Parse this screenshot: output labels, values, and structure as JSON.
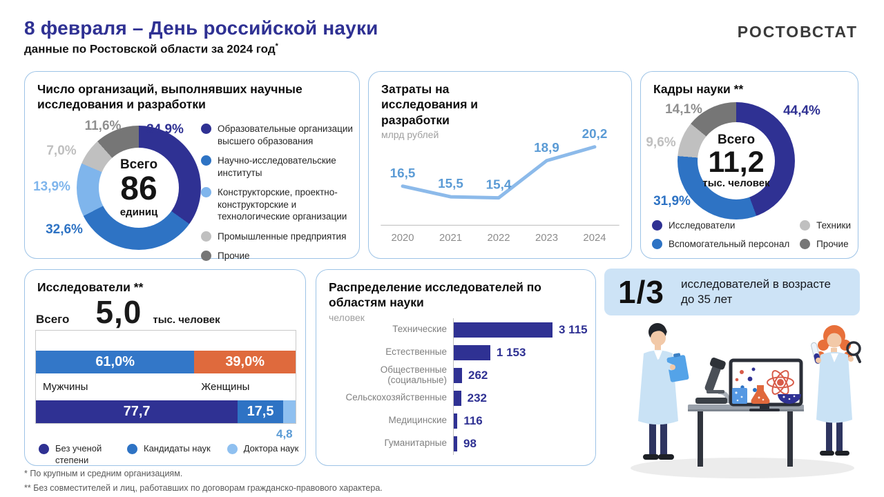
{
  "header": {
    "title": "8 февраля – День российской науки",
    "subtitle": "данные по Ростовской области за 2024 год",
    "subtitle_mark": "*",
    "logo": "РОСТОВСТАТ"
  },
  "colors": {
    "navy": "#2F3193",
    "blue": "#2E73C4",
    "light_blue": "#7FB5EC",
    "light_gray": "#C0C0C0",
    "dark_gray": "#767676",
    "orange": "#E0683C",
    "card_border": "#9DC3E6",
    "badge_bg": "#CDE3F6"
  },
  "chart_data": [
    {
      "id": "organizations",
      "type": "pie",
      "donut": true,
      "title": "Число организаций, выполнявших научные исследования и разработки",
      "center": {
        "top": "Всего",
        "value": "86",
        "unit": "единиц"
      },
      "legend_position": "right",
      "segments": [
        {
          "label": "Образовательные организации высшего образования",
          "value": 34.9,
          "display": "34,9%",
          "color": "#2F3193",
          "label_color": "#2F3193"
        },
        {
          "label": "Научно-исследовательские институты",
          "value": 32.6,
          "display": "32,6%",
          "color": "#2E73C4",
          "label_color": "#2E73C4"
        },
        {
          "label": "Конструкторские, проектно-конструкторские и технологические  организации",
          "value": 13.9,
          "display": "13,9%",
          "color": "#7FB5EC",
          "label_color": "#7FB5EC"
        },
        {
          "label": "Промышленные  предприятия",
          "value": 7.0,
          "display": "7,0%",
          "color": "#C0C0C0",
          "label_color": "#BFBFBF"
        },
        {
          "label": "Прочие",
          "value": 11.6,
          "display": "11,6%",
          "color": "#767676",
          "label_color": "#8F8F8F"
        }
      ]
    },
    {
      "id": "expenditure",
      "type": "line",
      "title": "Затраты на исследования и разработки",
      "unit_label": "млрд рублей",
      "x": [
        "2020",
        "2021",
        "2022",
        "2023",
        "2024"
      ],
      "values": [
        16.5,
        15.5,
        15.4,
        18.9,
        20.2
      ],
      "value_labels": [
        "16,5",
        "15,5",
        "15,4",
        "18,9",
        "20,2"
      ],
      "ylim": [
        15.4,
        20.2
      ],
      "grid": false,
      "line_color": "#8CBAEA",
      "value_label_color": "#5B9BD5",
      "tick_color": "#8C8C8C"
    },
    {
      "id": "personnel",
      "type": "pie",
      "donut": true,
      "title": "Кадры науки **",
      "center": {
        "top": "Всего",
        "value": "11,2",
        "unit": "тыс. человек"
      },
      "legend_position": "bottom",
      "segments": [
        {
          "label": "Исследователи",
          "value": 44.4,
          "display": "44,4%",
          "color": "#2F3193",
          "label_color": "#2F3193"
        },
        {
          "label": "Вспомогательный  персонал",
          "value": 31.9,
          "display": "31,9%",
          "color": "#2E73C4",
          "label_color": "#2E73C4"
        },
        {
          "label": "Техники",
          "value": 9.6,
          "display": "9,6%",
          "color": "#C0C0C0",
          "label_color": "#BFBFBF"
        },
        {
          "label": "Прочие",
          "value": 14.1,
          "display": "14,1%",
          "color": "#767676",
          "label_color": "#8F8F8F"
        }
      ]
    },
    {
      "id": "researchers",
      "type": "bar",
      "title": "Исследователи **",
      "total": {
        "label": "Всего",
        "value": "5,0",
        "unit": "тыс. человек"
      },
      "gender_bar": [
        {
          "label": "Мужчины",
          "value": 61.0,
          "display": "61,0%",
          "color": "#3377C8"
        },
        {
          "label": "Женщины",
          "value": 39.0,
          "display": "39,0%",
          "color": "#DF6A3D"
        }
      ],
      "degree_bar": [
        {
          "label": "Без ученой степени",
          "value": 77.7,
          "display": "77,7",
          "color": "#2F3193"
        },
        {
          "label": "Кандидаты наук",
          "value": 17.5,
          "display": "17,5",
          "color": "#2E73C4"
        },
        {
          "label": "Доктора наук",
          "value": 4.8,
          "display": "4,8",
          "color": "#8FC0F0",
          "label_outside": true
        }
      ]
    },
    {
      "id": "fields",
      "type": "bar",
      "title": "Распределение исследователей по областям науки",
      "unit_label": "человек",
      "categories": [
        "Технические",
        "Естественные",
        "Общественные  (социальные)",
        "Сельскохозяйственные",
        "Медицинские",
        "Гуманитарные"
      ],
      "values": [
        3115,
        1153,
        262,
        232,
        116,
        98
      ],
      "value_labels": [
        "3 115",
        "1 153",
        "262",
        "232",
        "116",
        "98"
      ],
      "bar_color": "#2F3193"
    }
  ],
  "highlight": {
    "fraction": "1/3",
    "text": "исследователей  в возрасте до 35 лет"
  },
  "footnotes": {
    "first": "* По  крупным и средним организациям.",
    "second": "** Без совместителей и лиц, работавших по договорам гражданско-правового характера."
  }
}
